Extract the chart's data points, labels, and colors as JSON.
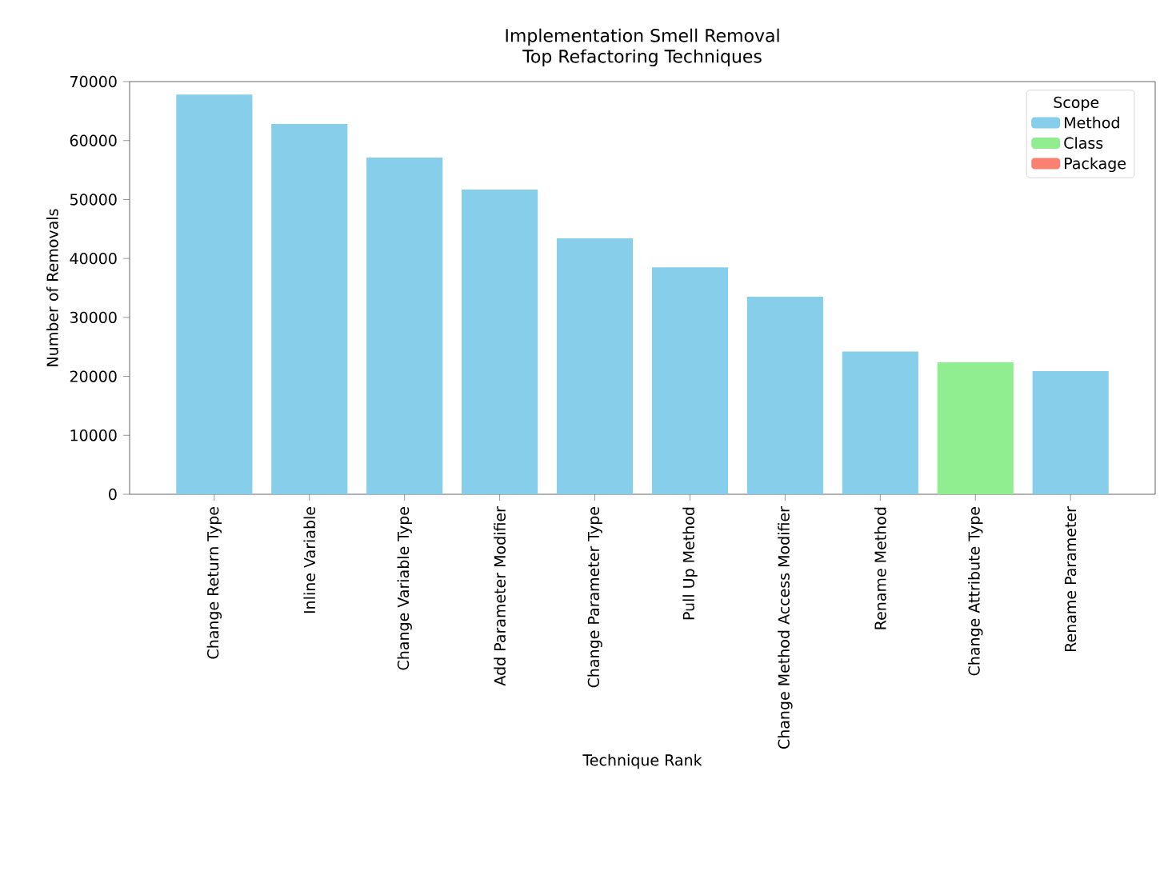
{
  "chart_data": {
    "type": "bar",
    "title": "Implementation Smell Removal",
    "subtitle": "Top Refactoring Techniques",
    "xlabel": "Technique Rank",
    "ylabel": "Number of Removals",
    "legend_title": "Scope",
    "legend": "top right",
    "categories": [
      "Change Return Type",
      "Inline Variable",
      "Change Variable Type",
      "Add Parameter Modifier",
      "Change Parameter Type",
      "Pull Up Method",
      "Change Method Access Modifier",
      "Rename Method",
      "Change Attribute Type",
      "Rename Parameter"
    ],
    "series": [
      {
        "name": "Method",
        "color": "#87ceeb",
        "values": [
          67800,
          62800,
          57100,
          51700,
          43400,
          38500,
          33500,
          24200,
          null,
          20900
        ]
      },
      {
        "name": "Class",
        "color": "#90ee90",
        "values": [
          null,
          null,
          null,
          null,
          null,
          null,
          null,
          null,
          22400,
          null
        ]
      },
      {
        "name": "Package",
        "color": "#fa8072",
        "values": [
          null,
          null,
          null,
          null,
          null,
          null,
          null,
          null,
          null,
          null
        ]
      }
    ],
    "ylim": [
      0,
      70000
    ],
    "yticks": [
      0,
      10000,
      20000,
      30000,
      40000,
      50000,
      60000,
      70000
    ],
    "grid": false
  }
}
